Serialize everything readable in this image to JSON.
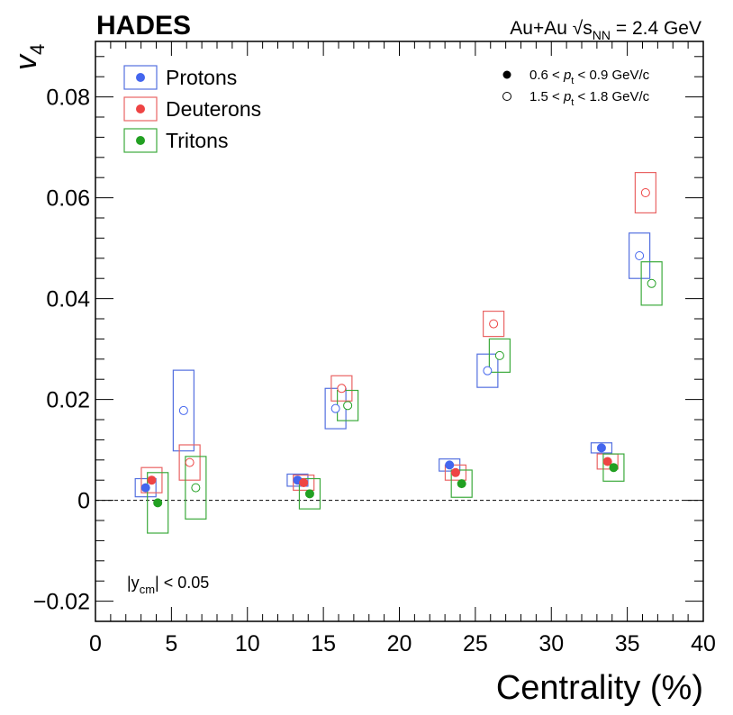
{
  "chart_data": {
    "type": "scatter",
    "experiment": "HADES",
    "system": {
      "prefix": "Au+Au ",
      "sqrt_symbol": "√",
      "s_letter": "s",
      "s_subscript": "NN",
      "suffix": " = 2.4 GeV"
    },
    "xlabel": "Centrality (%)",
    "ylabel": {
      "main": "v",
      "sub": "4"
    },
    "xlim": [
      0,
      40
    ],
    "ylim": [
      -0.024,
      0.091
    ],
    "x_ticks": [
      0,
      5,
      10,
      15,
      20,
      25,
      30,
      35,
      40
    ],
    "x_tick_labels": [
      "0",
      "5",
      "10",
      "15",
      "20",
      "25",
      "30",
      "35",
      "40"
    ],
    "y_ticks": [
      -0.02,
      0,
      0.02,
      0.04,
      0.06,
      0.08
    ],
    "y_tick_labels": [
      "−0.02",
      "0",
      "0.02",
      "0.04",
      "0.06",
      "0.08"
    ],
    "rapidity_cut": {
      "pre": "|y",
      "sub": "cm",
      "post": "| < 0.05"
    },
    "pt_bins": [
      {
        "marker": "filled",
        "pre": "0.6 < ",
        "p": "p",
        "sub": "t",
        "post": " < 0.9 GeV/c"
      },
      {
        "marker": "open",
        "pre": "1.5 < ",
        "p": "p",
        "sub": "t",
        "post": " < 1.8 GeV/c"
      }
    ],
    "series": [
      {
        "name": "Protons",
        "color": "#4466ee",
        "box_color": "#5470e0",
        "low_pt": [
          {
            "x": 3.3,
            "y": 0.0025,
            "sys": 0.0018
          },
          {
            "x": 13.3,
            "y": 0.004,
            "sys": 0.0012
          },
          {
            "x": 23.3,
            "y": 0.007,
            "sys": 0.0012
          },
          {
            "x": 33.3,
            "y": 0.0104,
            "sys": 0.001
          }
        ],
        "high_pt": [
          {
            "x": 5.8,
            "y": 0.0178,
            "sys": 0.008
          },
          {
            "x": 15.8,
            "y": 0.0182,
            "sys": 0.004
          },
          {
            "x": 25.8,
            "y": 0.0257,
            "sys": 0.0033
          },
          {
            "x": 35.8,
            "y": 0.0485,
            "sys": 0.0045
          }
        ]
      },
      {
        "name": "Deuterons",
        "color": "#ee4444",
        "box_color": "#e96464",
        "low_pt": [
          {
            "x": 3.7,
            "y": 0.004,
            "sys": 0.0025
          },
          {
            "x": 13.7,
            "y": 0.0035,
            "sys": 0.0015
          },
          {
            "x": 23.7,
            "y": 0.0055,
            "sys": 0.0015
          },
          {
            "x": 33.7,
            "y": 0.0077,
            "sys": 0.0015
          }
        ],
        "high_pt": [
          {
            "x": 6.2,
            "y": 0.0075,
            "sys": 0.0035
          },
          {
            "x": 16.2,
            "y": 0.0222,
            "sys": 0.0025
          },
          {
            "x": 26.2,
            "y": 0.035,
            "sys": 0.0025
          },
          {
            "x": 36.2,
            "y": 0.061,
            "sys": 0.004
          }
        ]
      },
      {
        "name": "Tritons",
        "color": "#22a022",
        "box_color": "#3caa3c",
        "low_pt": [
          {
            "x": 4.1,
            "y": -0.0005,
            "sys": 0.006
          },
          {
            "x": 14.1,
            "y": 0.0013,
            "sys": 0.003
          },
          {
            "x": 24.1,
            "y": 0.0033,
            "sys": 0.0027
          },
          {
            "x": 34.1,
            "y": 0.0065,
            "sys": 0.0027
          }
        ],
        "high_pt": [
          {
            "x": 6.6,
            "y": 0.0025,
            "sys": 0.0062
          },
          {
            "x": 16.6,
            "y": 0.0188,
            "sys": 0.003
          },
          {
            "x": 26.6,
            "y": 0.0287,
            "sys": 0.0033
          },
          {
            "x": 36.6,
            "y": 0.043,
            "sys": 0.0043
          }
        ]
      }
    ],
    "reference_line": {
      "y": 0,
      "style": "dashed"
    }
  }
}
